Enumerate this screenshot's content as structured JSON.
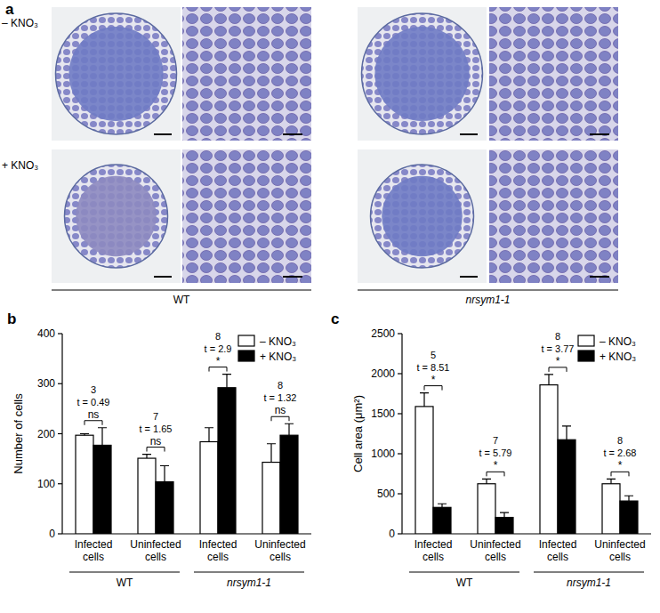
{
  "panel_a": {
    "title": "a",
    "rows": [
      "– KNO₃",
      "+ KNO₃"
    ],
    "columns": [
      "WT",
      "nrsym1-1"
    ]
  },
  "chart_data": [
    {
      "type": "bar",
      "title": "b",
      "y_label": "Number of cells",
      "categories": [
        "Infected cells",
        "Uninfected cells",
        "Infected cells",
        "Uninfected cells"
      ],
      "x_groups": [
        "WT",
        "WT",
        "nrsym1-1",
        "nrsym1-1"
      ],
      "series": [
        {
          "name": "– KNO₃",
          "color": "#ffffff",
          "values": [
            197,
            151,
            184,
            143
          ],
          "errors": [
            3,
            8,
            28,
            37
          ]
        },
        {
          "name": "+ KNO₃",
          "color": "#000000",
          "values": [
            177,
            104,
            292,
            197
          ],
          "errors": [
            35,
            32,
            27,
            23
          ]
        }
      ],
      "annotations": [
        {
          "n": 3,
          "t": "t = 0.49",
          "sig": "ns"
        },
        {
          "n": 7,
          "t": "t = 1.65",
          "sig": "ns"
        },
        {
          "n": 8,
          "t": "t = 2.9",
          "sig": "*"
        },
        {
          "n": 8,
          "t": "t = 1.32",
          "sig": "ns"
        }
      ],
      "ylim": [
        0,
        400
      ],
      "yticks": [
        0,
        100,
        200,
        300,
        400
      ],
      "grid": false,
      "legend": "upper right"
    },
    {
      "type": "bar",
      "title": "c",
      "y_label": "Cell area (μm²)",
      "categories": [
        "Infected cells",
        "Uninfected cells",
        "Infected cells",
        "Uninfected cells"
      ],
      "x_groups": [
        "WT",
        "WT",
        "nrsym1-1",
        "nrsym1-1"
      ],
      "series": [
        {
          "name": "– KNO₃",
          "color": "#ffffff",
          "values": [
            1590,
            625,
            1860,
            625
          ],
          "errors": [
            170,
            60,
            130,
            60
          ]
        },
        {
          "name": "+ KNO₃",
          "color": "#000000",
          "values": [
            330,
            205,
            1175,
            410
          ],
          "errors": [
            45,
            60,
            170,
            65
          ]
        }
      ],
      "annotations": [
        {
          "n": 5,
          "t": "t = 8.51",
          "sig": "*"
        },
        {
          "n": 7,
          "t": "t = 5.79",
          "sig": "*"
        },
        {
          "n": 8,
          "t": "t = 3.77",
          "sig": "*"
        },
        {
          "n": 8,
          "t": "t = 2.68",
          "sig": "*"
        }
      ],
      "ylim": [
        0,
        2500
      ],
      "yticks": [
        0,
        500,
        1000,
        1500,
        2000,
        2500
      ],
      "grid": false,
      "legend": "upper right"
    }
  ]
}
